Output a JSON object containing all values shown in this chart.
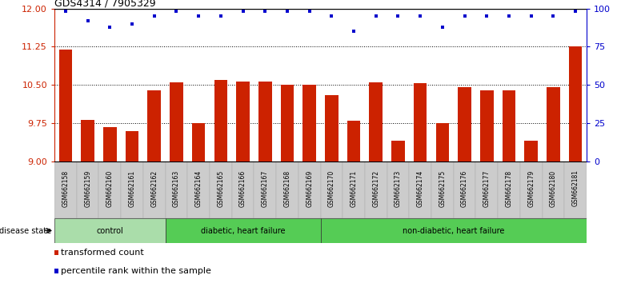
{
  "title": "GDS4314 / 7905329",
  "samples": [
    "GSM662158",
    "GSM662159",
    "GSM662160",
    "GSM662161",
    "GSM662162",
    "GSM662163",
    "GSM662164",
    "GSM662165",
    "GSM662166",
    "GSM662167",
    "GSM662168",
    "GSM662169",
    "GSM662170",
    "GSM662171",
    "GSM662172",
    "GSM662173",
    "GSM662174",
    "GSM662175",
    "GSM662176",
    "GSM662177",
    "GSM662178",
    "GSM662179",
    "GSM662180",
    "GSM662181"
  ],
  "bar_values": [
    11.19,
    9.82,
    9.67,
    9.6,
    10.4,
    10.55,
    9.75,
    10.6,
    10.57,
    10.56,
    10.5,
    10.5,
    10.3,
    9.8,
    10.55,
    9.4,
    10.54,
    9.75,
    10.46,
    10.4,
    10.4,
    9.4,
    10.46,
    11.25
  ],
  "percentile_values": [
    98,
    92,
    88,
    90,
    95,
    98,
    95,
    95,
    98,
    98,
    98,
    98,
    95,
    85,
    95,
    95,
    95,
    88,
    95,
    95,
    95,
    95,
    95,
    98
  ],
  "ylim_left": [
    9.0,
    12.0
  ],
  "ylim_right": [
    0,
    100
  ],
  "yticks_left": [
    9.0,
    9.75,
    10.5,
    11.25,
    12.0
  ],
  "yticks_right": [
    0,
    25,
    50,
    75,
    100
  ],
  "bar_color": "#cc2200",
  "dot_color": "#0000cc",
  "groups": [
    {
      "label": "control",
      "start": 0,
      "end": 4,
      "color": "#aaddaa"
    },
    {
      "label": "diabetic, heart failure",
      "start": 5,
      "end": 11,
      "color": "#55cc55"
    },
    {
      "label": "non-diabetic, heart failure",
      "start": 12,
      "end": 23,
      "color": "#55cc55"
    }
  ],
  "legend_items": [
    {
      "label": "transformed count",
      "color": "#cc2200"
    },
    {
      "label": "percentile rank within the sample",
      "color": "#0000cc"
    }
  ],
  "disease_state_label": "disease state",
  "axis_bg_color": "#ffffff",
  "tick_label_bg": "#cccccc"
}
